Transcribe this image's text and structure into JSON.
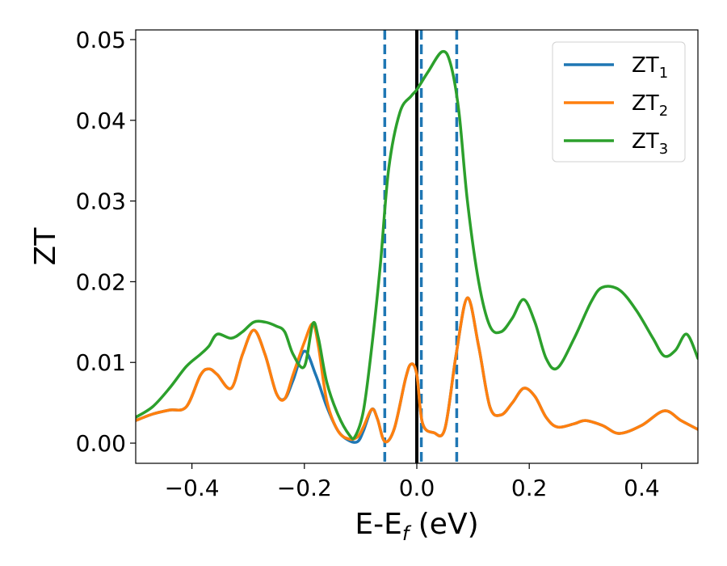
{
  "chart_data": {
    "type": "line",
    "xlabel": "E-E",
    "xlabel_sub": "f",
    "xlabel_unit": " (eV)",
    "ylabel": "ZT",
    "xlim": [
      -0.5,
      0.5
    ],
    "ylim": [
      -0.0025,
      0.0512
    ],
    "xticks": [
      -0.4,
      -0.2,
      0.0,
      0.2,
      0.4
    ],
    "xtick_labels": [
      "−0.4",
      "−0.2",
      "0.0",
      "0.2",
      "0.4"
    ],
    "yticks": [
      0.0,
      0.01,
      0.02,
      0.03,
      0.04,
      0.05
    ],
    "ytick_labels": [
      "0.00",
      "0.01",
      "0.02",
      "0.03",
      "0.04",
      "0.05"
    ],
    "grid": false,
    "legend_position": "top-right",
    "vertical_lines": [
      {
        "x": -0.057,
        "style": "dashed",
        "color": "#1f77b4"
      },
      {
        "x": 0.0,
        "style": "solid",
        "color": "#000000"
      },
      {
        "x": 0.008,
        "style": "dashed",
        "color": "#1f77b4"
      },
      {
        "x": 0.071,
        "style": "dashed",
        "color": "#1f77b4"
      }
    ],
    "series": [
      {
        "name": "ZT",
        "name_sub": "1",
        "color": "#1f77b4",
        "x": [
          -0.5,
          -0.47,
          -0.44,
          -0.41,
          -0.385,
          -0.37,
          -0.355,
          -0.33,
          -0.31,
          -0.29,
          -0.27,
          -0.25,
          -0.235,
          -0.22,
          -0.2,
          -0.18,
          -0.16,
          -0.14,
          -0.12,
          -0.105,
          -0.095,
          -0.08,
          -0.07,
          -0.057,
          -0.04,
          -0.02,
          -0.01,
          0.0,
          0.01,
          0.03,
          0.05,
          0.07,
          0.09,
          0.11,
          0.13,
          0.15,
          0.17,
          0.19,
          0.21,
          0.23,
          0.25,
          0.28,
          0.3,
          0.33,
          0.36,
          0.4,
          0.44,
          0.47,
          0.5
        ],
        "y": [
          0.0028,
          0.0036,
          0.0041,
          0.0045,
          0.0084,
          0.0092,
          0.0085,
          0.0068,
          0.011,
          0.014,
          0.011,
          0.0062,
          0.0055,
          0.0078,
          0.0114,
          0.0085,
          0.0045,
          0.0015,
          0.0003,
          0.0002,
          0.0015,
          0.0042,
          0.003,
          0.0002,
          0.0018,
          0.008,
          0.0098,
          0.0085,
          0.0025,
          0.0013,
          0.0018,
          0.011,
          0.018,
          0.012,
          0.0045,
          0.0035,
          0.005,
          0.0068,
          0.0058,
          0.0032,
          0.002,
          0.0024,
          0.0028,
          0.0022,
          0.0012,
          0.0022,
          0.004,
          0.0028,
          0.0017
        ]
      },
      {
        "name": "ZT",
        "name_sub": "2",
        "color": "#ff7f0e",
        "x": [
          -0.5,
          -0.47,
          -0.44,
          -0.41,
          -0.385,
          -0.37,
          -0.355,
          -0.33,
          -0.31,
          -0.29,
          -0.27,
          -0.25,
          -0.235,
          -0.22,
          -0.2,
          -0.185,
          -0.175,
          -0.16,
          -0.14,
          -0.12,
          -0.105,
          -0.095,
          -0.08,
          -0.07,
          -0.057,
          -0.04,
          -0.02,
          -0.01,
          0.0,
          0.01,
          0.03,
          0.05,
          0.07,
          0.09,
          0.11,
          0.13,
          0.15,
          0.17,
          0.19,
          0.21,
          0.23,
          0.25,
          0.28,
          0.3,
          0.33,
          0.36,
          0.4,
          0.44,
          0.47,
          0.5
        ],
        "y": [
          0.0028,
          0.0036,
          0.0041,
          0.0045,
          0.0084,
          0.0092,
          0.0085,
          0.0068,
          0.011,
          0.014,
          0.011,
          0.0062,
          0.0055,
          0.0085,
          0.0125,
          0.0148,
          0.012,
          0.0052,
          0.0015,
          0.0005,
          0.0008,
          0.002,
          0.0042,
          0.003,
          0.0002,
          0.0018,
          0.008,
          0.0098,
          0.0085,
          0.0025,
          0.0013,
          0.0018,
          0.011,
          0.018,
          0.012,
          0.0045,
          0.0035,
          0.005,
          0.0068,
          0.0058,
          0.0032,
          0.002,
          0.0024,
          0.0028,
          0.0022,
          0.0012,
          0.0022,
          0.004,
          0.0028,
          0.0017
        ]
      },
      {
        "name": "ZT",
        "name_sub": "3",
        "color": "#2ca02c",
        "x": [
          -0.5,
          -0.47,
          -0.44,
          -0.41,
          -0.385,
          -0.37,
          -0.355,
          -0.33,
          -0.31,
          -0.29,
          -0.27,
          -0.25,
          -0.235,
          -0.22,
          -0.2,
          -0.185,
          -0.175,
          -0.16,
          -0.14,
          -0.12,
          -0.11,
          -0.095,
          -0.08,
          -0.065,
          -0.05,
          -0.03,
          -0.01,
          0.0,
          0.02,
          0.045,
          0.06,
          0.075,
          0.09,
          0.11,
          0.13,
          0.15,
          0.17,
          0.19,
          0.21,
          0.23,
          0.25,
          0.28,
          0.31,
          0.33,
          0.36,
          0.39,
          0.42,
          0.44,
          0.46,
          0.48,
          0.5
        ],
        "y": [
          0.0032,
          0.0045,
          0.0068,
          0.0095,
          0.011,
          0.012,
          0.0135,
          0.013,
          0.0138,
          0.015,
          0.015,
          0.0145,
          0.0138,
          0.011,
          0.0095,
          0.0148,
          0.013,
          0.0075,
          0.0035,
          0.001,
          0.0008,
          0.004,
          0.012,
          0.022,
          0.034,
          0.041,
          0.043,
          0.0438,
          0.046,
          0.0485,
          0.047,
          0.041,
          0.03,
          0.02,
          0.0145,
          0.0138,
          0.0155,
          0.0178,
          0.015,
          0.0105,
          0.0093,
          0.013,
          0.0175,
          0.0193,
          0.019,
          0.0165,
          0.013,
          0.0108,
          0.0115,
          0.0135,
          0.0105
        ]
      }
    ]
  }
}
